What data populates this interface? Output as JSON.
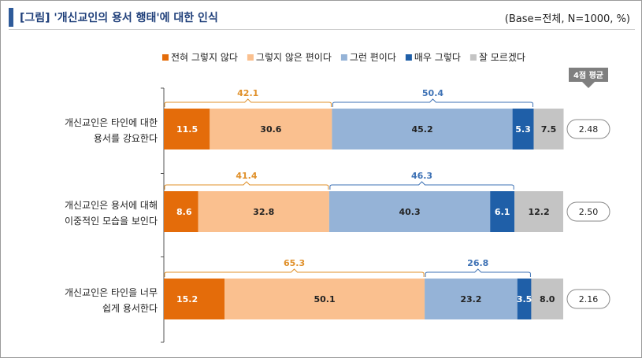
{
  "header": {
    "title": "[그림] '개신교인의 용서 행태'에 대한 인식",
    "base_note": "(Base=전체,  N=1000,  %)"
  },
  "avg_header": "4점 평균",
  "colors": {
    "s0": "#e46c0a",
    "s1": "#fac08f",
    "s2": "#95b3d7",
    "s3": "#1f5fa8",
    "s4": "#c4c4c4",
    "bracket_neg": "#e0902a",
    "bracket_pos": "#3e72b5"
  },
  "chart_data": {
    "type": "bar",
    "orientation": "horizontal",
    "stacked": true,
    "xlim": [
      0,
      100
    ],
    "legend_position": "top",
    "categories": [
      [
        "개신교인은 타인에 대한",
        "용서를 강요한다"
      ],
      [
        "개신교인은 용서에 대해",
        "이중적인 모습을 보인다"
      ],
      [
        "개신교인은 타인을 너무",
        "쉽게 용서한다"
      ]
    ],
    "series": [
      {
        "name": "전혀 그렇지 않다",
        "values": [
          11.5,
          8.6,
          15.2
        ]
      },
      {
        "name": "그렇지 않은 편이다",
        "values": [
          30.6,
          32.8,
          50.1
        ]
      },
      {
        "name": "그런 편이다",
        "values": [
          45.2,
          40.3,
          23.2
        ]
      },
      {
        "name": "매우 그렇다",
        "values": [
          5.3,
          6.1,
          3.5
        ]
      },
      {
        "name": "잘 모르겠다",
        "values": [
          7.5,
          12.2,
          8.0
        ]
      }
    ],
    "negative_totals": [
      "42.1",
      "41.4",
      "65.3"
    ],
    "positive_totals": [
      "50.4",
      "46.3",
      "26.8"
    ],
    "averages": [
      "2.48",
      "2.50",
      "2.16"
    ]
  }
}
